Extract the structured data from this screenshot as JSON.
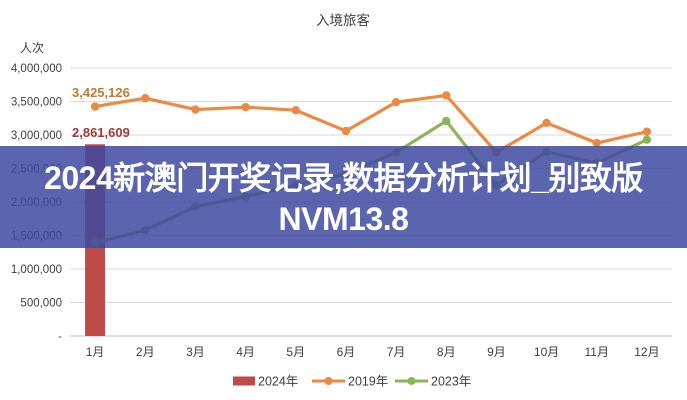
{
  "title": "入境旅客",
  "y_axis": {
    "unit_label": "人次",
    "ticks": [
      "4,000,000",
      "3,500,000",
      "3,000,000",
      "2,500,000",
      "2,000,000",
      "1,500,000",
      "1,000,000",
      "500,000",
      "-"
    ],
    "tick_values": [
      4000000,
      3500000,
      3000000,
      2500000,
      2000000,
      1500000,
      1000000,
      500000,
      0
    ]
  },
  "x_axis": {
    "categories": [
      "1月",
      "2月",
      "3月",
      "4月",
      "5月",
      "6月",
      "7月",
      "8月",
      "9月",
      "10月",
      "11月",
      "12月"
    ]
  },
  "legend": {
    "position": "bottom",
    "items": [
      {
        "label": "2024年",
        "swatch": "bar",
        "color": "#be4b48"
      },
      {
        "label": "2019年",
        "swatch": "line",
        "color": "#ec8a44"
      },
      {
        "label": "2023年",
        "swatch": "line",
        "color": "#8ab659"
      }
    ]
  },
  "data_labels": [
    {
      "series": "2019年",
      "category": "1月",
      "text": "3,425,126",
      "color": "#bf7b2b"
    },
    {
      "series": "2024年",
      "category": "1月",
      "text": "2,861,609",
      "color": "#a23b3c"
    }
  ],
  "overlay": {
    "line1": "2024新澳门开奖记录,数据分析计划_别致版",
    "line2": "NVM13.8",
    "bg": "rgba(62,73,160,0.85)",
    "text_color": "#ffffff"
  },
  "colors": {
    "grid": "#d9d9d9",
    "axis": "#c0c0c0",
    "text": "#3f3f3f",
    "bar_2024": "#be4b48",
    "line_2019": "#ec8a44",
    "line_2023": "#8ab659"
  },
  "chart_data": {
    "type": "combo",
    "title": "入境旅客",
    "ylabel": "人次",
    "xlabel": "",
    "grid": true,
    "legend_position": "bottom",
    "ylim": [
      0,
      4000000
    ],
    "categories": [
      "1月",
      "2月",
      "3月",
      "4月",
      "5月",
      "6月",
      "7月",
      "8月",
      "9月",
      "10月",
      "11月",
      "12月"
    ],
    "series": [
      {
        "name": "2024年",
        "type": "bar",
        "color": "#be4b48",
        "values": [
          2861609,
          null,
          null,
          null,
          null,
          null,
          null,
          null,
          null,
          null,
          null,
          null
        ]
      },
      {
        "name": "2019年",
        "type": "line",
        "color": "#ec8a44",
        "values": [
          3425126,
          3550000,
          3380000,
          3415000,
          3370000,
          3060000,
          3490000,
          3590000,
          2740000,
          3180000,
          2880000,
          3050000
        ]
      },
      {
        "name": "2023年",
        "type": "line",
        "color": "#8ab659",
        "values": [
          1390000,
          1580000,
          1930000,
          2080000,
          2250000,
          2420000,
          2740000,
          3210000,
          2250000,
          2750000,
          2580000,
          2930000
        ]
      }
    ]
  }
}
